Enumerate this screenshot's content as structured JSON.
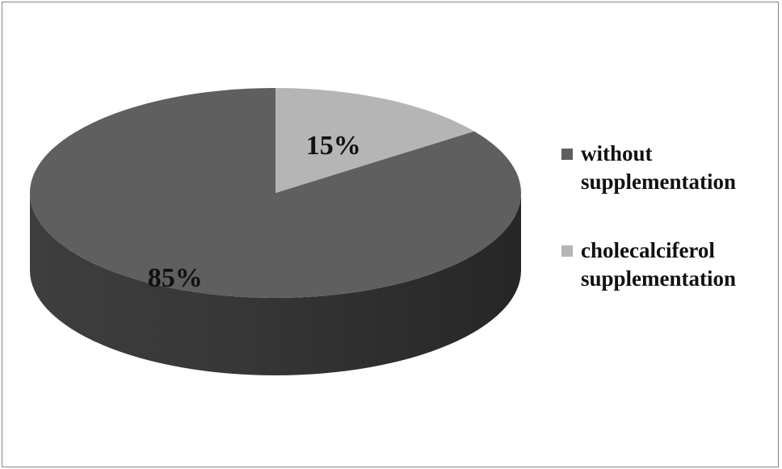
{
  "chart_data": {
    "type": "pie",
    "title": "",
    "categories": [
      "without supplementation",
      "cholecalciferol supplementation"
    ],
    "values": [
      85,
      15
    ],
    "data_labels": [
      "85%",
      "15%"
    ],
    "colors": [
      "#5f5f5f",
      "#b5b5b5"
    ],
    "legend_position": "right",
    "style": "3d"
  }
}
